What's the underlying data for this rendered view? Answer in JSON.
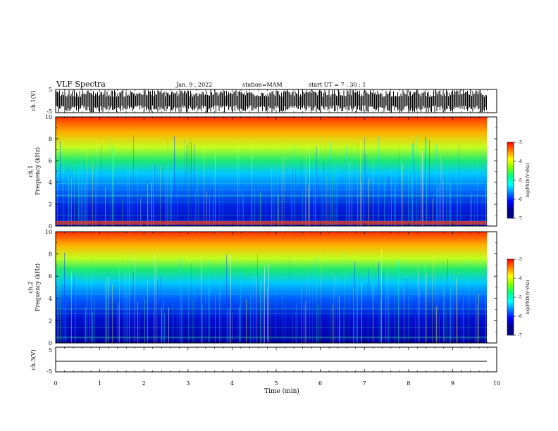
{
  "header": {
    "title": "VLF Spectra",
    "date": "Jan. 9 , 2022",
    "station": "station=MAM",
    "start_ut": "start UT =  7 : 30 : 1"
  },
  "panels": {
    "ch1_wave": {
      "ylabel": "ch.1(V)",
      "ticks": [
        "5",
        "-5"
      ]
    },
    "ch1_spec": {
      "ylabel_top": "ch.1",
      "ylabel": "Frequency (kHz)",
      "ticks": [
        "0",
        "2",
        "4",
        "6",
        "8",
        "10"
      ]
    },
    "ch2_spec": {
      "ylabel_top": "ch.2",
      "ylabel": "Frequency (kHz)",
      "ticks": [
        "0",
        "2",
        "4",
        "6",
        "8",
        "10"
      ]
    },
    "ch3_wave": {
      "ylabel": "ch.3(V)",
      "ticks": [
        "5",
        "-5"
      ]
    }
  },
  "xaxis": {
    "label": "Time (min)",
    "ticks": [
      "0",
      "1",
      "2",
      "3",
      "4",
      "5",
      "6",
      "7",
      "8",
      "9",
      "10"
    ]
  },
  "colorbar": {
    "label": "log(PSD)(V²/Hz)",
    "ticks": [
      "-3",
      "-4",
      "-5",
      "-6",
      "-7"
    ],
    "colors": [
      "#ff0000",
      "#ff7f00",
      "#ffff00",
      "#7fff00",
      "#00ff80",
      "#00ffff",
      "#0080ff",
      "#0000ff",
      "#00008b",
      "#000080"
    ]
  },
  "chart_data": [
    {
      "type": "line",
      "title": "",
      "xlabel": "Time (min)",
      "ylabel": "ch.1(V)",
      "xlim": [
        0,
        10
      ],
      "ylim": [
        -5,
        5
      ]
    },
    {
      "type": "heatmap",
      "title": "",
      "xlabel": "Time (min)",
      "ylabel": "Frequency (kHz)",
      "xlim": [
        0,
        10
      ],
      "ylim": [
        0,
        10
      ],
      "zlim": [
        -7,
        -3
      ]
    },
    {
      "type": "heatmap",
      "title": "",
      "xlabel": "Time (min)",
      "ylabel": "Frequency (kHz)",
      "xlim": [
        0,
        10
      ],
      "ylim": [
        0,
        10
      ],
      "zlim": [
        -7,
        -3
      ]
    },
    {
      "type": "line",
      "title": "",
      "xlabel": "Time (min)",
      "ylabel": "ch.3(V)",
      "xlim": [
        0,
        10
      ],
      "ylim": [
        -5,
        5
      ]
    }
  ]
}
